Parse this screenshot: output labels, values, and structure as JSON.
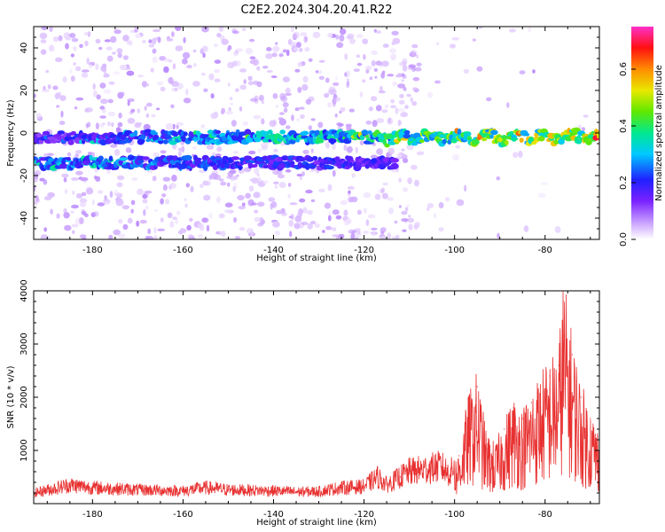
{
  "title": "C2E2.2024.304.20.41.R22",
  "chart_data": [
    {
      "type": "heatmap",
      "name": "spectrogram",
      "xlabel": "Height of straight line (km)",
      "ylabel": "Frequency (Hz)",
      "xlim": [
        -193,
        -68
      ],
      "ylim": [
        -50,
        50
      ],
      "xticks": [
        -180,
        -160,
        -140,
        -120,
        -100,
        -80
      ],
      "yticks": [
        -40,
        -20,
        0,
        20,
        40
      ],
      "colorbar": {
        "label": "Normalized spectral amplitude",
        "range": [
          0.0,
          0.75
        ],
        "ticks": [
          0.0,
          0.2,
          0.4,
          0.6
        ]
      },
      "features": [
        {
          "name": "upper band",
          "x_range": [
            -193,
            -68
          ],
          "frequency_hz": -2,
          "amplitude": "low-to-high, increasing toward right"
        },
        {
          "name": "lower band",
          "x_range": [
            -193,
            -115
          ],
          "frequency_hz": -14,
          "amplitude": "moderate"
        },
        {
          "name": "scatter noise",
          "x_range": [
            -193,
            -110
          ],
          "frequency_range_hz": [
            -50,
            50
          ],
          "amplitude": "low"
        }
      ]
    },
    {
      "type": "line",
      "name": "snr",
      "xlabel": "Height of straight line (km)",
      "ylabel": "SNR (10 * v/v)",
      "xlim": [
        -193,
        -68
      ],
      "ylim": [
        0,
        4000
      ],
      "xticks": [
        -180,
        -160,
        -140,
        -120,
        -100,
        -80
      ],
      "yticks": [
        1000,
        2000,
        3000,
        4000
      ],
      "series": [
        {
          "name": "SNR",
          "color": "#e83030",
          "x": [
            -193,
            -185,
            -180,
            -175,
            -170,
            -165,
            -160,
            -155,
            -150,
            -145,
            -140,
            -135,
            -130,
            -125,
            -120,
            -117,
            -115,
            -112,
            -110,
            -106,
            -103,
            -101,
            -99,
            -97,
            -95,
            -93,
            -91,
            -89,
            -87,
            -85,
            -83,
            -81,
            -79,
            -77,
            -76,
            -74,
            -72,
            -70,
            -68
          ],
          "y": [
            200,
            350,
            300,
            280,
            260,
            250,
            240,
            300,
            260,
            250,
            240,
            220,
            230,
            300,
            320,
            500,
            350,
            500,
            600,
            650,
            700,
            550,
            900,
            1800,
            2200,
            1200,
            1000,
            1400,
            1800,
            1600,
            1900,
            2200,
            2400,
            2600,
            3800,
            2800,
            2000,
            1600,
            1200
          ]
        }
      ]
    }
  ]
}
